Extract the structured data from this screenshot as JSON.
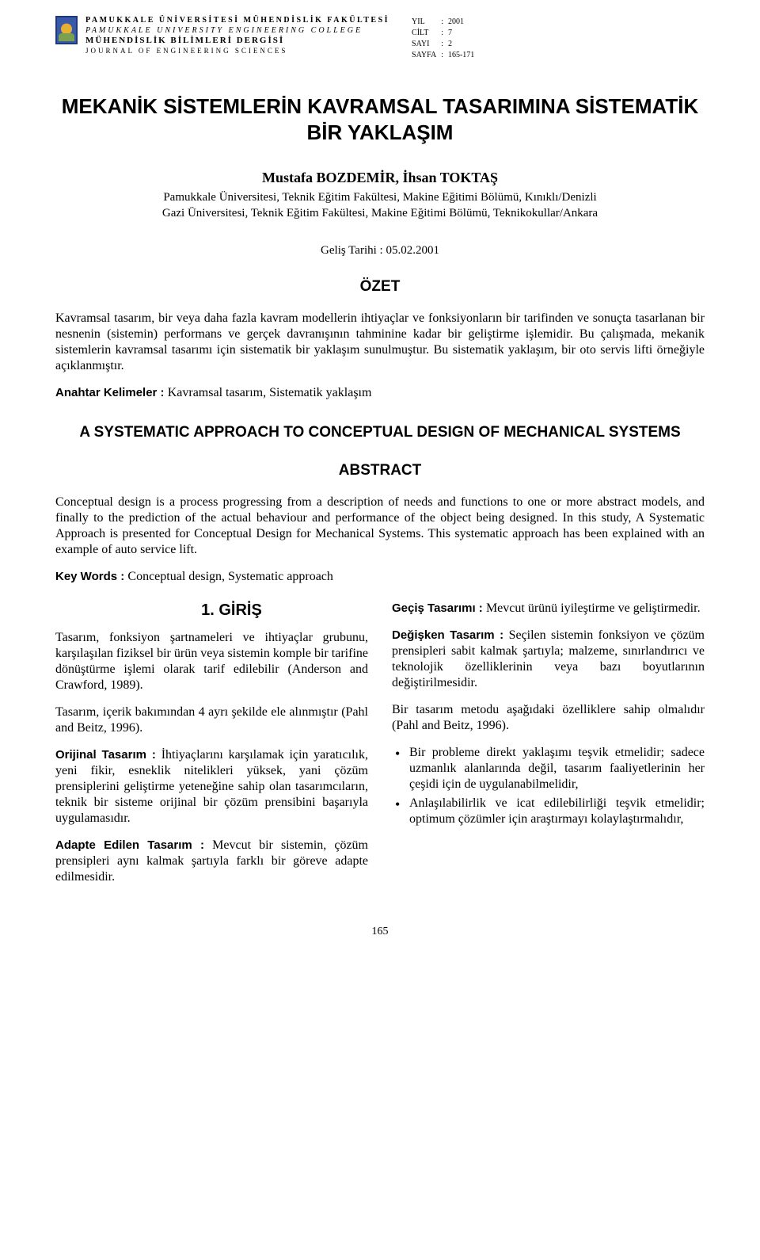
{
  "masthead": {
    "line1": "PAMUKKALE ÜNİVERSİTESİ MÜHENDİSLİK FAKÜLTESİ",
    "line2": "PAMUKKALE UNIVERSITY ENGINEERING COLLEGE",
    "line3": "MÜHENDİSLİK BİLİMLERİ DERGİSİ",
    "line4": "JOURNAL OF ENGINEERING SCIENCES"
  },
  "meta": {
    "yil_label": "YIL",
    "yil_val": "2001",
    "cilt_label": "CİLT",
    "cilt_val": "7",
    "sayi_label": "SAYI",
    "sayi_val": "2",
    "sayfa_label": "SAYFA",
    "sayfa_val": "165-171"
  },
  "title": "MEKANİK SİSTEMLERİN KAVRAMSAL TASARIMINA SİSTEMATİK BİR YAKLAŞIM",
  "authors": "Mustafa BOZDEMİR, İhsan TOKTAŞ",
  "affil1": "Pamukkale Üniversitesi, Teknik Eğitim Fakültesi, Makine Eğitimi Bölümü, Kınıklı/Denizli",
  "affil2": "Gazi Üniversitesi, Teknik Eğitim Fakültesi, Makine Eğitimi Bölümü, Teknikokullar/Ankara",
  "date": "Geliş Tarihi : 05.02.2001",
  "ozet_h": "ÖZET",
  "ozet_p": "Kavramsal tasarım, bir veya daha fazla kavram modellerin ihtiyaçlar ve fonksiyonların bir tarifinden ve sonuçta tasarlanan bir nesnenin (sistemin) performans ve gerçek davranışının tahminine kadar bir geliştirme işlemidir. Bu çalışmada, mekanik sistemlerin kavramsal tasarımı için sistematik bir yaklaşım sunulmuştur. Bu sistematik yaklaşım, bir oto servis lifti örneğiyle açıklanmıştır.",
  "kw1_label": "Anahtar Kelimeler : ",
  "kw1_val": "Kavramsal tasarım, Sistematik yaklaşım",
  "title_en": "A SYSTEMATIC APPROACH TO CONCEPTUAL DESIGN OF MECHANICAL SYSTEMS",
  "abstract_h": "ABSTRACT",
  "abstract_p": "Conceptual design is a process progressing from a description of needs and functions to one or more abstract models, and finally to the prediction of the actual behaviour and performance of the object being designed. In this study, A Systematic Approach is presented for Conceptual Design for Mechanical Systems. This systematic approach has been explained with an example of auto service lift.",
  "kw2_label": "Key Words :  ",
  "kw2_val": "Conceptual design, Systematic approach",
  "giris_h": "1. GİRİŞ",
  "left": {
    "p1": "Tasarım, fonksiyon şartnameleri ve ihtiyaçlar grubunu, karşılaşılan fiziksel bir ürün veya sistemin komple bir tarifine dönüştürme işlemi olarak tarif edilebilir (Anderson and Crawford, 1989).",
    "p2": "Tasarım, içerik bakımından 4 ayrı şekilde ele alınmıştır (Pahl and Beitz, 1996).",
    "d1_label": "Orijinal Tasarım : ",
    "d1_text": "İhtiyaçlarını karşılamak için yaratıcılık, yeni fikir, esneklik nitelikleri yüksek, yani çözüm prensiplerini geliştirme yeteneğine sahip olan tasarımcıların, teknik bir sisteme orijinal bir çözüm prensibini başarıyla uygulamasıdır.",
    "d2_label": "Adapte Edilen Tasarım : ",
    "d2_text": "Mevcut bir sistemin, çözüm prensipleri aynı kalmak şartıyla farklı bir göreve adapte edilmesidir."
  },
  "right": {
    "d3_label": "Geçiş Tasarımı : ",
    "d3_text": "Mevcut ürünü iyileştirme ve geliştirmedir.",
    "d4_label": "Değişken Tasarım : ",
    "d4_text": "Seçilen sistemin fonksiyon ve çözüm prensipleri sabit kalmak şartıyla; malzeme, sınırlandırıcı ve teknolojik özelliklerinin veya bazı boyutlarının değiştirilmesidir.",
    "p3": "Bir tasarım metodu aşağıdaki özelliklere sahip olmalıdır (Pahl and Beitz, 1996).",
    "b1": "Bir probleme direkt yaklaşımı teşvik etmelidir; sadece uzmanlık alanlarında değil, tasarım faaliyetlerinin her çeşidi için de uygulanabilmelidir,",
    "b2": "Anlaşılabilirlik ve icat edilebilirliği teşvik etmelidir; optimum çözümler için araştırmayı kolaylaştırmalıdır,"
  },
  "page_number": "165"
}
